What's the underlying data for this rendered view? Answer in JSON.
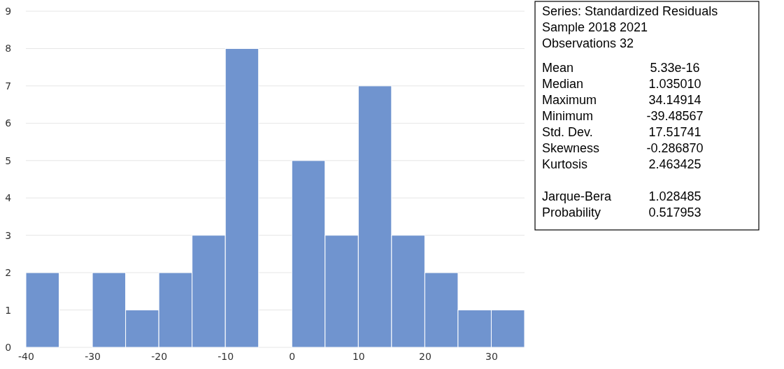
{
  "chart_data": {
    "type": "histogram",
    "bins": [
      -40,
      -35,
      -30,
      -25,
      -20,
      -15,
      -10,
      -5,
      0,
      5,
      10,
      15,
      20,
      25,
      30,
      35
    ],
    "values": [
      2,
      0,
      2,
      1,
      2,
      3,
      8,
      0,
      5,
      3,
      7,
      3,
      2,
      1,
      1
    ],
    "color": "#7094cf",
    "xlim": [
      -40,
      35
    ],
    "xticks": [
      -40,
      -30,
      -20,
      -10,
      0,
      10,
      20,
      30
    ],
    "ylim": [
      0,
      9
    ],
    "yticks": [
      0,
      1,
      2,
      3,
      4,
      5,
      6,
      7,
      8,
      9
    ],
    "grid": "y",
    "annotations": [
      "Series: Standardized Residuals Sample 2018 2021",
      "Observations 32",
      "Mean",
      "5.33e-16",
      "Median",
      "1.035010",
      "Maximum",
      "34.14914",
      "Minimum",
      "-39.48567",
      "Std. Dev.",
      "17.51741",
      "Skewness",
      "-0.286870",
      "Kurtosis",
      "2.463425",
      "Jarque-Bera",
      "1.028485",
      "Probability",
      "0.517953"
    ]
  }
}
